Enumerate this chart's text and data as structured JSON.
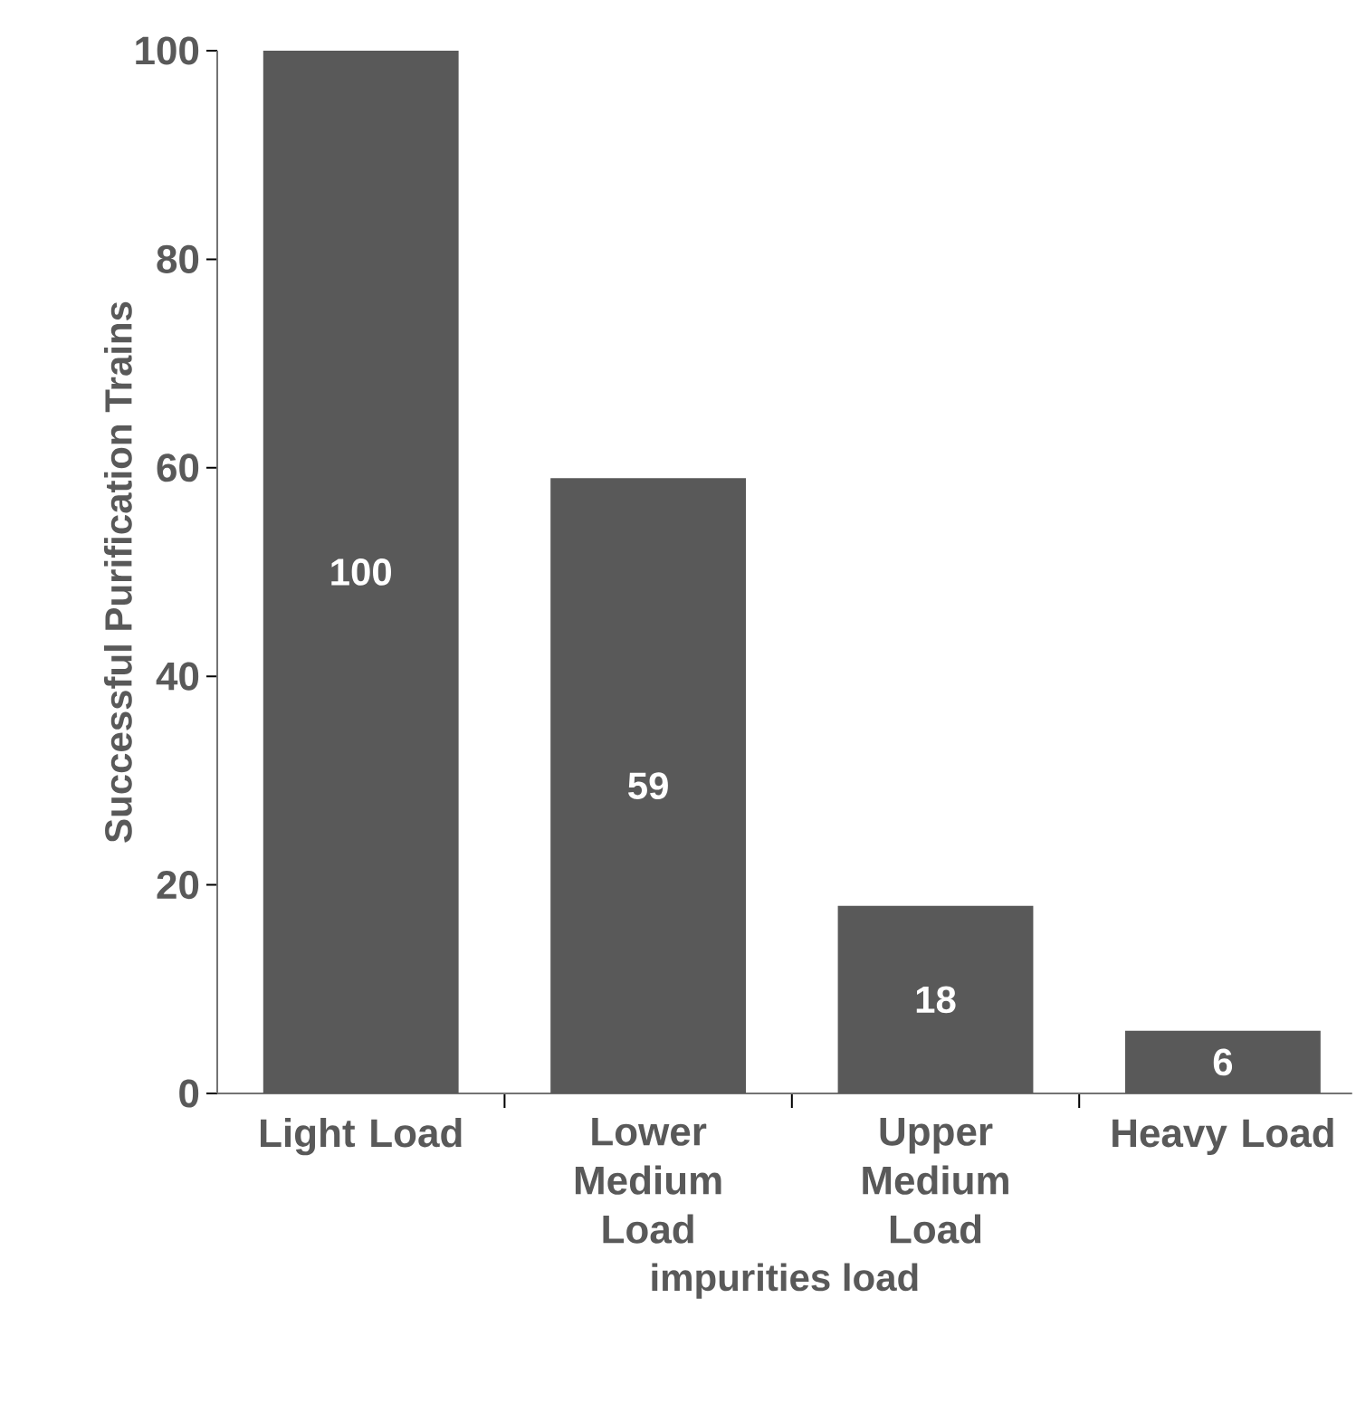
{
  "chart_data": {
    "type": "bar",
    "xlabel": "impurities load",
    "ylabel": "Successful Purification Trains",
    "categories": [
      "Light Load",
      "Lower Medium Load",
      "Upper Medium Load",
      "Heavy Load"
    ],
    "values": [
      100,
      59,
      18,
      6
    ],
    "color": "#595959",
    "ylim": [
      0,
      100
    ],
    "yticks": [
      0,
      20,
      40,
      60,
      80,
      100
    ],
    "grid": false,
    "data_labels": true
  }
}
